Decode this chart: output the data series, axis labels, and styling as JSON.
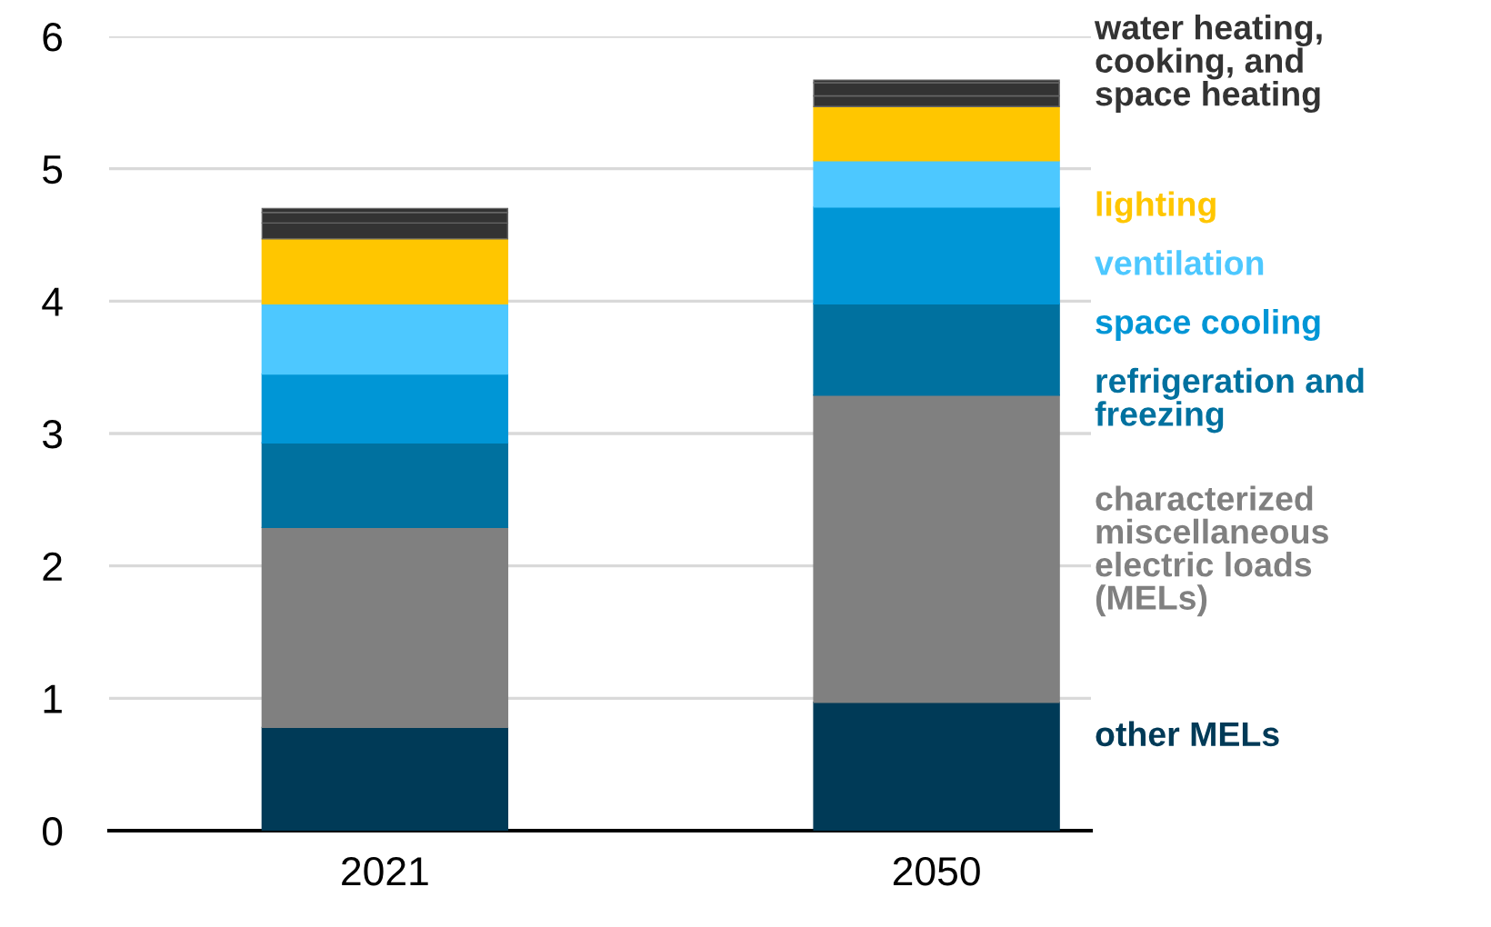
{
  "chart_data": {
    "type": "bar",
    "stacked": true,
    "categories": [
      "2021",
      "2050"
    ],
    "series": [
      {
        "name": "other MELs",
        "color": "#003a57",
        "values": [
          0.78,
          0.97
        ]
      },
      {
        "name": "characterized\nmiscellaneous\nelectric loads\n(MELs)",
        "color": "#808080",
        "values": [
          1.51,
          2.32
        ]
      },
      {
        "name": "refrigeration and\nfreezing",
        "color": "#00719f",
        "values": [
          0.64,
          0.69
        ]
      },
      {
        "name": "space cooling",
        "color": "#0096d6",
        "values": [
          0.52,
          0.73
        ]
      },
      {
        "name": "ventilation",
        "color": "#4dc8ff",
        "values": [
          0.53,
          0.35
        ]
      },
      {
        "name": "lighting",
        "color": "#ffc600",
        "values": [
          0.49,
          0.41
        ]
      },
      {
        "color": "#333333",
        "values": [
          0.12,
          0.08
        ]
      },
      {
        "color": "#333333",
        "values": [
          0.08,
          0.1
        ]
      },
      {
        "name": "water heating,\ncooking, and\nspace heating",
        "color": "#333333",
        "values": [
          0.03,
          0.02
        ]
      }
    ],
    "ylim": [
      0,
      6
    ],
    "yticks": [
      0,
      1,
      2,
      3,
      4,
      5,
      6
    ],
    "grid": "y",
    "legend": "right"
  }
}
